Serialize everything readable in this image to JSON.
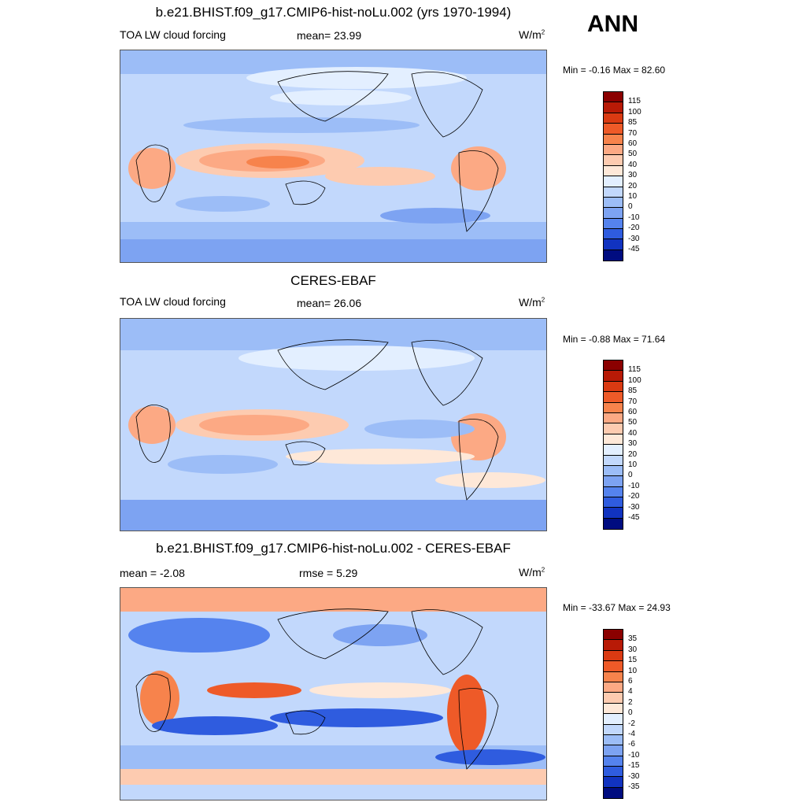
{
  "ann_label": "ANN",
  "panels": [
    {
      "title": "b.e21.BHIST.f09_g17.CMIP6-hist-noLu.002 (yrs 1970-1994)",
      "left_label": "TOA LW cloud forcing",
      "center_label": "mean=  23.99",
      "unit_base": "W/m",
      "unit_exp": "2",
      "minmax": "Min =  -0.16 Max =  82.60"
    },
    {
      "title": "CERES-EBAF",
      "left_label": "TOA LW cloud forcing",
      "center_label": "mean=  26.06",
      "unit_base": "W/m",
      "unit_exp": "2",
      "minmax": "Min =  -0.88 Max =  71.64"
    },
    {
      "title": "b.e21.BHIST.f09_g17.CMIP6-hist-noLu.002 - CERES-EBAF",
      "left_label": "mean =  -2.08",
      "center_label": "rmse =   5.29",
      "unit_base": "W/m",
      "unit_exp": "2",
      "minmax": "Min = -33.67 Max =  24.93"
    }
  ],
  "colorbars": {
    "abs": {
      "labels": [
        "115",
        "100",
        "85",
        "70",
        "60",
        "50",
        "40",
        "30",
        "20",
        "10",
        "0",
        "-10",
        "-20",
        "-30",
        "-45"
      ],
      "colors": [
        "#8b0000",
        "#b81a06",
        "#da3a12",
        "#ee5a28",
        "#f7834c",
        "#fca984",
        "#fdcbb0",
        "#fee8d8",
        "#e3efff",
        "#c2d8fc",
        "#9cbdf7",
        "#7da3f2",
        "#5583ee",
        "#2f5cdf",
        "#1133c0",
        "#000c80"
      ]
    },
    "diff": {
      "labels": [
        "35",
        "30",
        "15",
        "10",
        "6",
        "4",
        "2",
        "0",
        "-2",
        "-4",
        "-6",
        "-10",
        "-15",
        "-30",
        "-35"
      ],
      "colors": [
        "#8b0000",
        "#b81a06",
        "#da3a12",
        "#ee5a28",
        "#f7834c",
        "#fca984",
        "#fdcbb0",
        "#fee8d8",
        "#e3efff",
        "#c2d8fc",
        "#9cbdf7",
        "#7da3f2",
        "#5583ee",
        "#2f5cdf",
        "#1133c0",
        "#000c80"
      ]
    }
  }
}
